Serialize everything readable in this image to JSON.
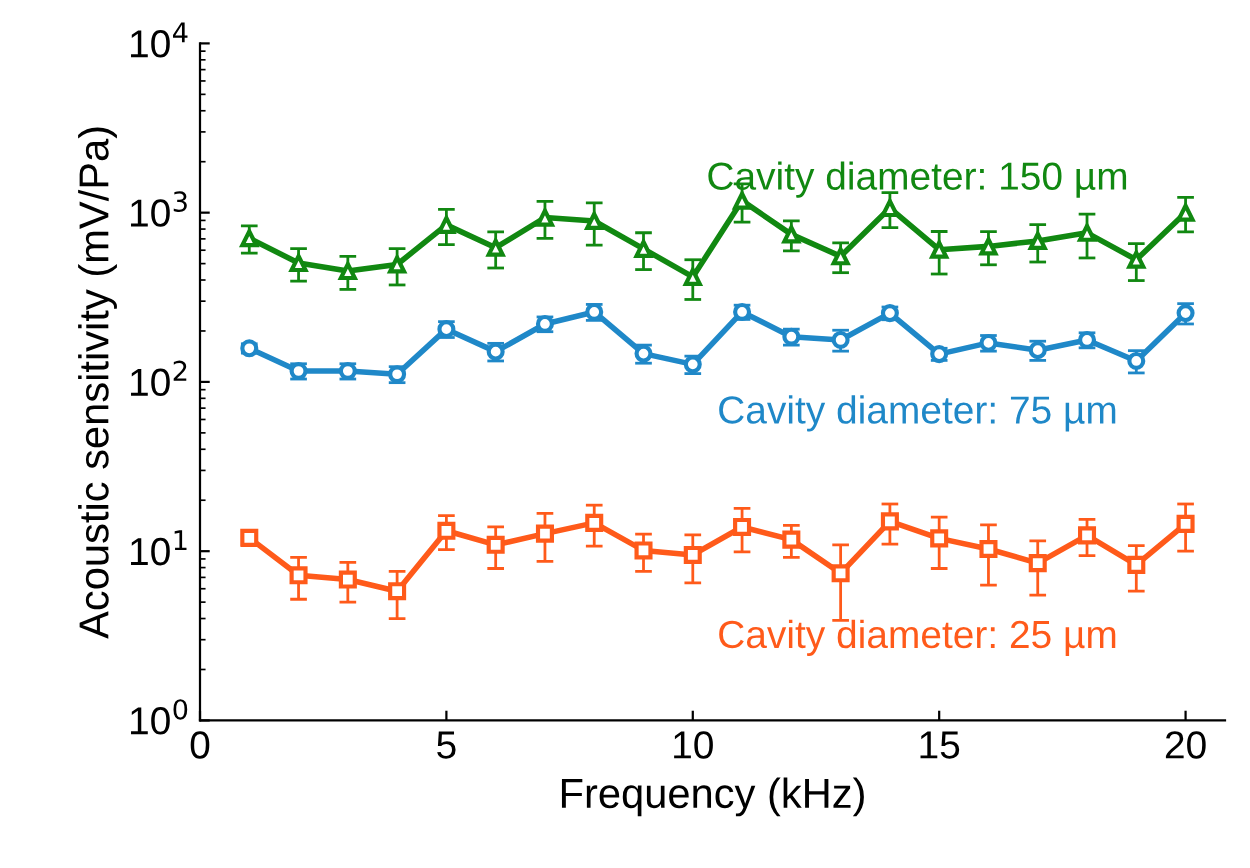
{
  "chart_data": {
    "type": "line",
    "xlabel": "Frequency (kHz)",
    "ylabel": "Acoustic sensitivity (mV/Pa)",
    "log": "y",
    "x": [
      1,
      2,
      3,
      4,
      5,
      6,
      7,
      8,
      9,
      10,
      11,
      12,
      13,
      14,
      15,
      16,
      17,
      18,
      19,
      20
    ],
    "xlim": [
      0,
      20.8
    ],
    "xticks": [
      0,
      5,
      10,
      15,
      20
    ],
    "ylim": [
      1,
      10000
    ],
    "yticks": [
      {
        "value": 1,
        "label": "10$^{0}$"
      },
      {
        "value": 10,
        "label": "10$^{1}$"
      },
      {
        "value": 100,
        "label": "10$^{2}$"
      },
      {
        "value": 1000,
        "label": "10$^{3}$"
      },
      {
        "value": 10000,
        "label": "10$^{4}$"
      }
    ],
    "grid": false,
    "legend": "right",
    "series": [
      {
        "name": "Cavity diameter: 150 µm",
        "color": "#118811",
        "marker": "triangle",
        "values": [
          706,
          504,
          452,
          494,
          847,
          621,
          935,
          893,
          611,
          417,
          1178,
          744,
          552,
          1065,
          604,
          632,
          681,
          760,
          527,
          1000
        ],
        "errors": [
          130,
          110,
          100,
          120,
          200,
          150,
          230,
          250,
          150,
          110,
          300,
          150,
          110,
          250,
          170,
          140,
          170,
          220,
          130,
          230
        ]
      },
      {
        "name": "Cavity diameter: 75 µm",
        "color": "#1f88c8",
        "marker": "circle",
        "values": [
          158,
          116,
          116,
          111,
          205,
          151,
          220,
          259,
          147,
          127,
          259,
          185,
          177,
          255,
          146,
          170,
          154,
          177,
          133,
          255
        ],
        "errors": [
          10,
          12,
          12,
          12,
          22,
          18,
          22,
          28,
          18,
          15,
          25,
          20,
          25,
          22,
          12,
          18,
          20,
          18,
          20,
          35
        ]
      },
      {
        "name": "Cavity diameter: 25 µm",
        "color": "#ff5a1a",
        "marker": "square",
        "values": [
          12.0,
          7.2,
          6.8,
          5.8,
          13.2,
          10.9,
          12.7,
          14.7,
          10.1,
          9.5,
          13.9,
          11.7,
          7.4,
          15.0,
          11.9,
          10.3,
          8.5,
          12.4,
          8.3,
          14.5
        ],
        "errors": [
          1.2,
          2,
          1.8,
          1.8,
          3,
          3,
          4,
          4,
          2.5,
          3,
          4,
          2.5,
          3.5,
          4,
          4,
          4,
          3,
          3,
          2.5,
          4.5
        ]
      }
    ]
  }
}
